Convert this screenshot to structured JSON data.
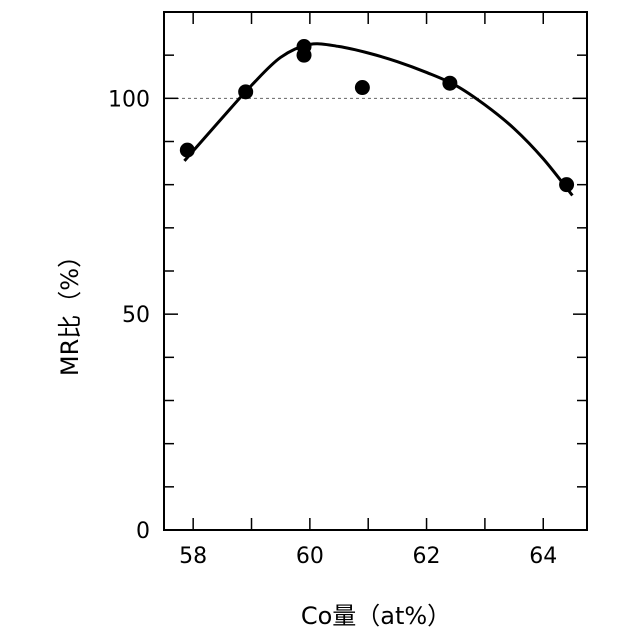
{
  "chart_data": {
    "type": "scatter",
    "xlabel": "Co量（at%）",
    "ylabel": "MR比（%）",
    "xlim": [
      57.5,
      64.75
    ],
    "ylim": [
      0,
      120
    ],
    "x_ticks": [
      58,
      60,
      62,
      64
    ],
    "x_tick_labels": [
      "58",
      "60",
      "62",
      "64"
    ],
    "y_ticks": [
      0,
      50,
      100
    ],
    "y_tick_labels": [
      "0",
      "50",
      "100"
    ],
    "reference_line": 100,
    "grid": false,
    "series": [
      {
        "points": [
          {
            "x": 57.9,
            "y": 88
          },
          {
            "x": 58.9,
            "y": 101.5
          },
          {
            "x": 59.9,
            "y": 112
          },
          {
            "x": 59.9,
            "y": 110
          },
          {
            "x": 60.9,
            "y": 102.5
          },
          {
            "x": 62.4,
            "y": 103.5
          },
          {
            "x": 64.4,
            "y": 80
          }
        ]
      }
    ],
    "fit_curve": [
      {
        "x": 57.85,
        "y": 85.5
      },
      {
        "x": 58.5,
        "y": 95.5
      },
      {
        "x": 59.0,
        "y": 103
      },
      {
        "x": 59.5,
        "y": 109.5
      },
      {
        "x": 60.0,
        "y": 112.5
      },
      {
        "x": 60.5,
        "y": 112
      },
      {
        "x": 61.0,
        "y": 110.5
      },
      {
        "x": 61.5,
        "y": 108.5
      },
      {
        "x": 62.0,
        "y": 106
      },
      {
        "x": 62.5,
        "y": 103
      },
      {
        "x": 63.0,
        "y": 98.5
      },
      {
        "x": 63.5,
        "y": 93
      },
      {
        "x": 64.0,
        "y": 86
      },
      {
        "x": 64.5,
        "y": 77.5
      }
    ]
  }
}
